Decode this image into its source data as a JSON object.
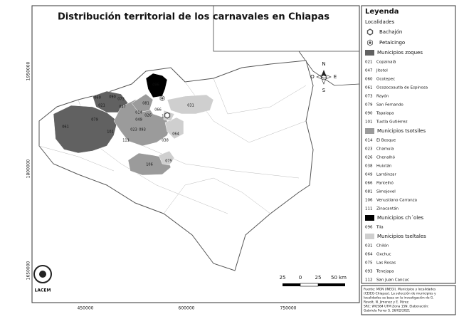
{
  "map": {
    "title": "Distribución territorial de los carnavales en Chiapas",
    "y_labels": [
      "1950000",
      "1800000",
      "1650000"
    ],
    "x_labels": [
      "450000",
      "600000",
      "750000"
    ],
    "north": {
      "n": "N",
      "s": "S",
      "e": "E",
      "w": "O"
    },
    "scale": [
      "25",
      "0",
      "25",
      "50 km"
    ],
    "logo": "LACEM"
  },
  "legend": {
    "title": "Leyenda",
    "localidades": {
      "heading": "Localidades",
      "items": [
        "Bachajón",
        "Petalcingo"
      ]
    },
    "groups": [
      {
        "heading": "Municipios zoques",
        "color": "#616161",
        "items": [
          {
            "code": "021",
            "name": "Copainalá"
          },
          {
            "code": "047",
            "name": "Jitotol"
          },
          {
            "code": "060",
            "name": "Ocotepec"
          },
          {
            "code": "061",
            "name": "Ocozocoautla de Espinosa"
          },
          {
            "code": "073",
            "name": "Rayón"
          },
          {
            "code": "079",
            "name": "San Fernando"
          },
          {
            "code": "090",
            "name": "Tapalapa"
          },
          {
            "code": "101",
            "name": "Tuxtla Gutiérrez"
          }
        ]
      },
      {
        "heading": "Municipios tsotsiles",
        "color": "#9b9b9b",
        "items": [
          {
            "code": "014",
            "name": "El Bosque"
          },
          {
            "code": "023",
            "name": "Chamula"
          },
          {
            "code": "026",
            "name": "Chenalhó"
          },
          {
            "code": "038",
            "name": "Huixtán"
          },
          {
            "code": "049",
            "name": "Larráinzar"
          },
          {
            "code": "066",
            "name": "Pantelhó"
          },
          {
            "code": "081",
            "name": "Simojovel"
          },
          {
            "code": "106",
            "name": "Venustiano Carranza"
          },
          {
            "code": "111",
            "name": "Zinacantán"
          }
        ]
      },
      {
        "heading": "Municipios ch´oles",
        "color": "#000000",
        "items": [
          {
            "code": "096",
            "name": "Tila"
          }
        ]
      },
      {
        "heading": "Municipios tseltales",
        "color": "#cfcfcf",
        "items": [
          {
            "code": "031",
            "name": "Chilón"
          },
          {
            "code": "064",
            "name": "Oxchuc"
          },
          {
            "code": "075",
            "name": "Las Rosas"
          },
          {
            "code": "093",
            "name": "Tenejapa"
          },
          {
            "code": "112",
            "name": "San Juan Cancuc"
          }
        ]
      }
    ]
  },
  "source": [
    "Fuente: MGN (INEGI). Municipios y localidades",
    "(CEIEG-Chiapas). La selección de municipios y",
    "localidades se basa en la investigación de G.",
    "Revolt, N. Jimenez y E. Pérez.",
    "SRC: WGS84 UTM Zona 15N. Elaboración:",
    "Gabriela Ferrer S. 26/02/2021"
  ]
}
